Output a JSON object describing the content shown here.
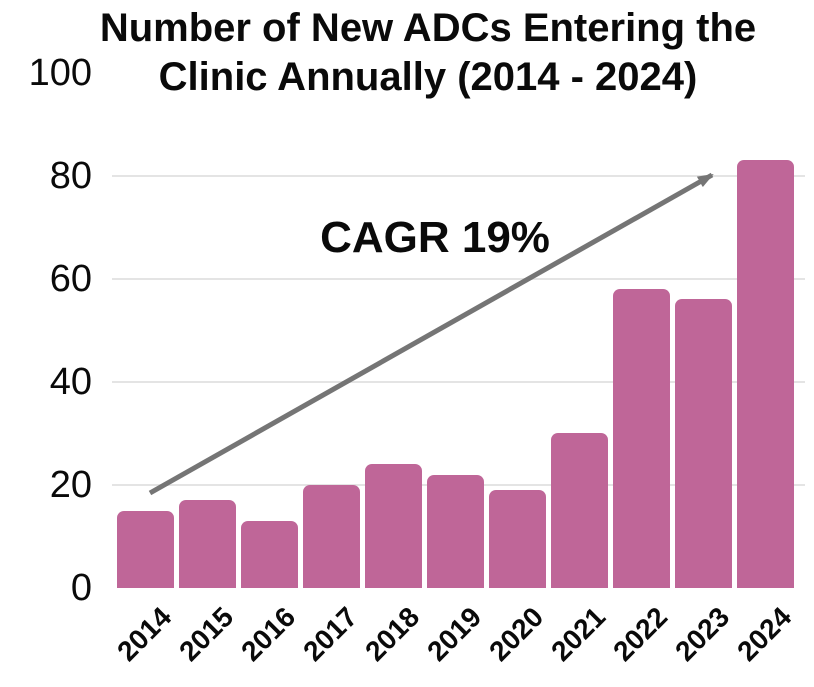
{
  "title_lines": [
    "Number of New ADCs Entering the",
    "Clinic Annually (2014 - 2024)"
  ],
  "annotation": {
    "label": "CAGR 19%"
  },
  "colors": {
    "bar": "#bf6698",
    "arrow": "#757575",
    "grid": "#e4e4e4",
    "text": "#0a0a0a"
  },
  "chart_data": {
    "type": "bar",
    "title": "Number of New ADCs Entering the Clinic Annually (2014 - 2024)",
    "categories": [
      "2014",
      "2015",
      "2016",
      "2017",
      "2018",
      "2019",
      "2020",
      "2021",
      "2022",
      "2023",
      "2024"
    ],
    "values": [
      15,
      17,
      13,
      20,
      24,
      22,
      19,
      30,
      58,
      56,
      83
    ],
    "xlabel": "",
    "ylabel": "",
    "ylim": [
      0,
      100
    ],
    "yticks": [
      0,
      20,
      40,
      60,
      80,
      100
    ],
    "gridline_ticks": [
      20,
      40,
      60,
      80
    ],
    "grid": true,
    "legend": false,
    "bar_color": "#bf6698",
    "annotations": [
      {
        "text": "CAGR 19%",
        "type": "trend-arrow",
        "from": {
          "category": "2014",
          "value": 18
        },
        "to": {
          "category": "2024",
          "value": 81
        }
      }
    ]
  }
}
